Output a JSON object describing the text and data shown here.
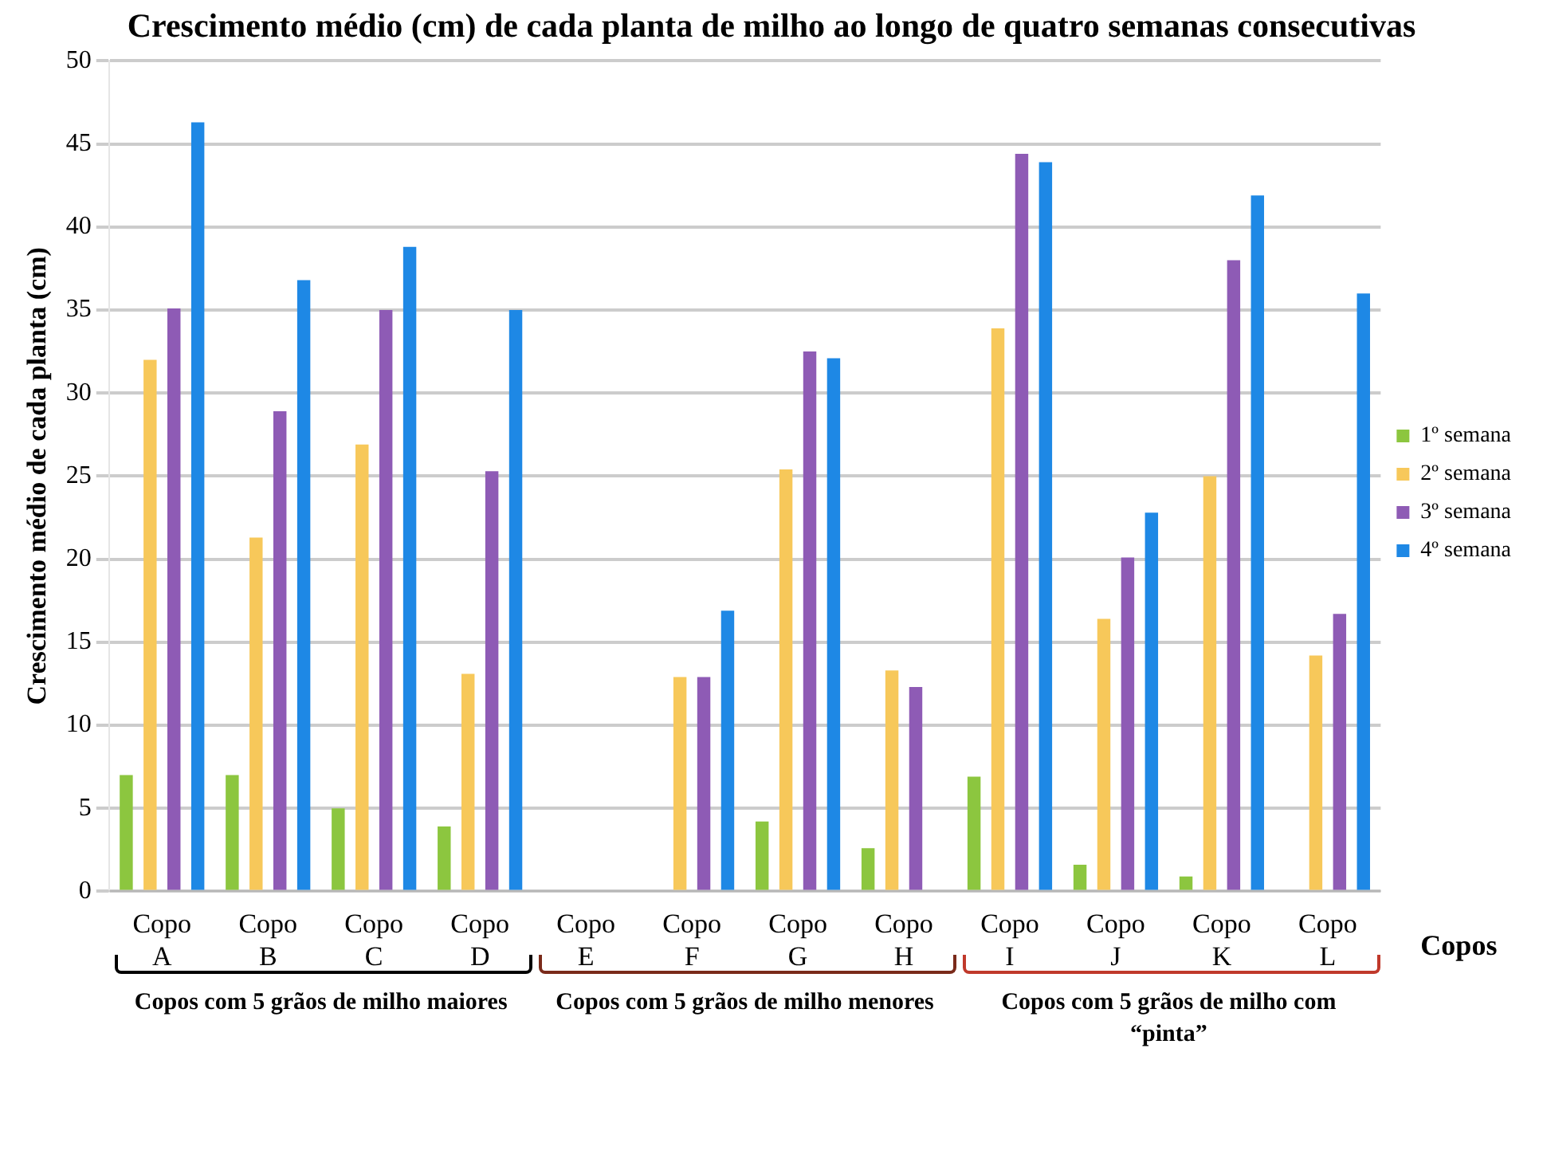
{
  "chart_data": {
    "type": "bar",
    "title": "Crescimento médio (cm) de cada planta de milho ao longo de quatro semanas consecutivas",
    "xlabel": "Copos",
    "ylabel": "Crescimento médio de cada planta (cm)",
    "categories": [
      "Copo A",
      "Copo B",
      "Copo C",
      "Copo D",
      "Copo E",
      "Copo F",
      "Copo G",
      "Copo H",
      "Copo I",
      "Copo J",
      "Copo K",
      "Copo L"
    ],
    "series": [
      {
        "name": "1º semana",
        "color": "#8cc63f",
        "values": [
          7,
          7,
          5,
          3.9,
          null,
          null,
          4.2,
          2.6,
          6.9,
          1.6,
          0.9,
          null
        ]
      },
      {
        "name": "2º semana",
        "color": "#f7c85a",
        "values": [
          32,
          21.3,
          26.9,
          13.1,
          null,
          12.9,
          25.4,
          13.3,
          33.9,
          16.4,
          25,
          14.2
        ]
      },
      {
        "name": "3º semana",
        "color": "#8e5bb5",
        "values": [
          35.1,
          28.9,
          35,
          25.3,
          null,
          12.9,
          32.5,
          12.3,
          44.4,
          20.1,
          38,
          16.7
        ]
      },
      {
        "name": "4º semana",
        "color": "#1e88e5",
        "values": [
          46.3,
          36.8,
          38.8,
          35,
          null,
          16.9,
          32.1,
          null,
          43.9,
          22.8,
          41.9,
          36
        ]
      }
    ],
    "ylim": [
      0,
      50
    ],
    "yticks": [
      0,
      5,
      10,
      15,
      20,
      25,
      30,
      35,
      40,
      45,
      50
    ],
    "grid": "y",
    "legend": "right",
    "annotations": [
      "Copos com 5 grãos de milho maiores",
      "Copos com 5 grãos de milho menores",
      "Copos com 5 grãos de milho com “pinta”"
    ]
  }
}
